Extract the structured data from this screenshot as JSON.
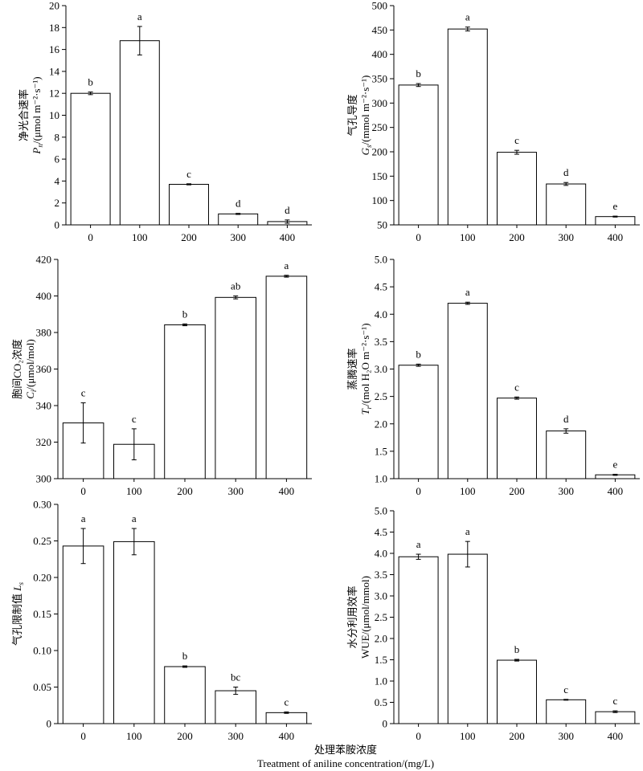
{
  "figure": {
    "x_title_cn": "处理苯胺浓度",
    "x_title_en": "Treatment of aniline concentration/(mg/L)"
  },
  "chart_data": [
    {
      "id": "pn",
      "type": "bar",
      "ylabel_cn": "净光合速率",
      "ylabel_sym": "P",
      "ylabel_sub": "n",
      "ylabel_unit": "/(μmol m⁻²·s⁻¹)",
      "categories": [
        "0",
        "100",
        "200",
        "300",
        "400"
      ],
      "values": [
        12.0,
        16.8,
        3.7,
        1.0,
        0.3
      ],
      "errors": [
        0.12,
        1.3,
        0.05,
        0.05,
        0.15
      ],
      "letters": [
        "b",
        "a",
        "c",
        "d",
        "d"
      ],
      "ylim": [
        0,
        20
      ],
      "yticks": [
        "0",
        "2",
        "4",
        "6",
        "8",
        "10",
        "12",
        "14",
        "16",
        "18",
        "20"
      ]
    },
    {
      "id": "gs",
      "type": "bar",
      "ylabel_cn": "气孔导度",
      "ylabel_sym": "G",
      "ylabel_sub": "s",
      "ylabel_unit": "/(mmol m⁻²·s⁻¹)",
      "categories": [
        "0",
        "100",
        "200",
        "300",
        "400"
      ],
      "values": [
        337,
        452,
        199,
        134,
        67
      ],
      "errors": [
        3,
        4,
        4,
        3,
        1
      ],
      "letters": [
        "b",
        "a",
        "c",
        "d",
        "e"
      ],
      "ylim": [
        50,
        500
      ],
      "yticks": [
        "50",
        "100",
        "150",
        "200",
        "250",
        "300",
        "350",
        "400",
        "450",
        "500"
      ]
    },
    {
      "id": "ci",
      "type": "bar",
      "ylabel_cn": "胞间CO₂浓度",
      "ylabel_sym": "C",
      "ylabel_sub": "i",
      "ylabel_unit": "/(μmol/mol)",
      "categories": [
        "0",
        "100",
        "200",
        "300",
        "400"
      ],
      "values": [
        330.5,
        318.8,
        384.2,
        399.2,
        410.8
      ],
      "errors": [
        11,
        8.5,
        0.5,
        0.8,
        0.5
      ],
      "letters": [
        "c",
        "c",
        "b",
        "ab",
        "a"
      ],
      "ylim": [
        300,
        420
      ],
      "yticks": [
        "300",
        "320",
        "340",
        "360",
        "380",
        "400",
        "420"
      ]
    },
    {
      "id": "tr",
      "type": "bar",
      "ylabel_cn": "蒸腾速率",
      "ylabel_sym": "T",
      "ylabel_sub": "r",
      "ylabel_unit": "/(mol H₂O m⁻²·s⁻¹)",
      "categories": [
        "0",
        "100",
        "200",
        "300",
        "400"
      ],
      "values": [
        3.07,
        4.2,
        2.47,
        1.87,
        1.07
      ],
      "errors": [
        0.02,
        0.02,
        0.02,
        0.04,
        0.01
      ],
      "letters": [
        "b",
        "a",
        "c",
        "d",
        "e"
      ],
      "ylim": [
        1.0,
        5.0
      ],
      "yticks": [
        "1.0",
        "1.5",
        "2.0",
        "2.5",
        "3.0",
        "3.5",
        "4.0",
        "4.5",
        "5.0"
      ]
    },
    {
      "id": "ls",
      "type": "bar",
      "ylabel_cn": "气孔限制值",
      "ylabel_sym": "L",
      "ylabel_sub": "s",
      "ylabel_unit": "",
      "categories": [
        "0",
        "100",
        "200",
        "300",
        "400"
      ],
      "values": [
        0.243,
        0.249,
        0.078,
        0.045,
        0.015
      ],
      "errors": [
        0.024,
        0.018,
        0.001,
        0.005,
        0.001
      ],
      "letters": [
        "a",
        "a",
        "b",
        "bc",
        "c"
      ],
      "ylim": [
        0,
        0.3
      ],
      "yticks": [
        "0",
        "0.05",
        "0.10",
        "0.15",
        "0.20",
        "0.25",
        "0.30"
      ]
    },
    {
      "id": "wue",
      "type": "bar",
      "ylabel_cn": "水分利用效率",
      "ylabel_sym": "",
      "ylabel_sub": "",
      "ylabel_unit": "WUE/(μmol/mmol)",
      "categories": [
        "0",
        "100",
        "200",
        "300",
        "400"
      ],
      "values": [
        3.92,
        3.98,
        1.49,
        0.56,
        0.28
      ],
      "errors": [
        0.06,
        0.3,
        0.02,
        0.01,
        0.02
      ],
      "letters": [
        "a",
        "a",
        "b",
        "c",
        "c"
      ],
      "ylim": [
        0,
        5.0
      ],
      "yticks": [
        "0",
        "0.5",
        "1.0",
        "1.5",
        "2.0",
        "2.5",
        "3.0",
        "3.5",
        "4.0",
        "4.5",
        "5.0"
      ]
    }
  ]
}
